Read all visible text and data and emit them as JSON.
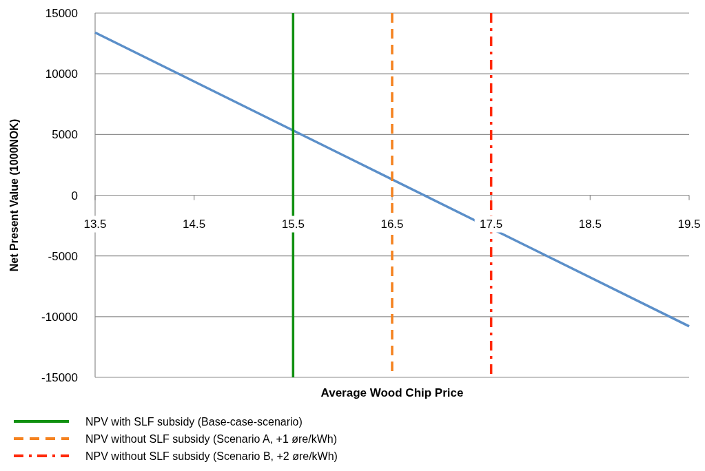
{
  "chart_data": {
    "type": "line",
    "xlabel": "Average Wood Chip Price",
    "ylabel": "Net Present Value (1000NOK)",
    "xlim": [
      13.5,
      19.5
    ],
    "xticks": [
      13.5,
      14.5,
      15.5,
      16.5,
      17.5,
      18.5,
      19.5
    ],
    "ylim": [
      -15000,
      15000
    ],
    "yticks": [
      -15000,
      -10000,
      -5000,
      0,
      5000,
      10000,
      15000
    ],
    "grid": "y",
    "legend": "bottom left",
    "series": [
      {
        "color": "#5b8fc9",
        "x": [
          13.5,
          19.5
        ],
        "values": [
          13400,
          -10800
        ],
        "line_style": "solid"
      },
      {
        "name": "NPV with SLF subsidy (Base-case-scenario)",
        "color": "#109010",
        "x": [
          15.5,
          15.5
        ],
        "values": [
          15000,
          -15000
        ],
        "line_style": "solid"
      },
      {
        "name": "NPV without SLF subsidy (Scenario A, +1 øre/kWh)",
        "color": "#f5821f",
        "x": [
          16.5,
          16.5
        ],
        "values": [
          15000,
          -15000
        ],
        "line_style": "dashed"
      },
      {
        "name": "NPV without SLF subsidy (Scenario B, +2 øre/kWh)",
        "color": "#ff2a0a",
        "x": [
          17.5,
          17.5
        ],
        "values": [
          15000,
          -15000
        ],
        "line_style": "dashdot"
      }
    ]
  }
}
